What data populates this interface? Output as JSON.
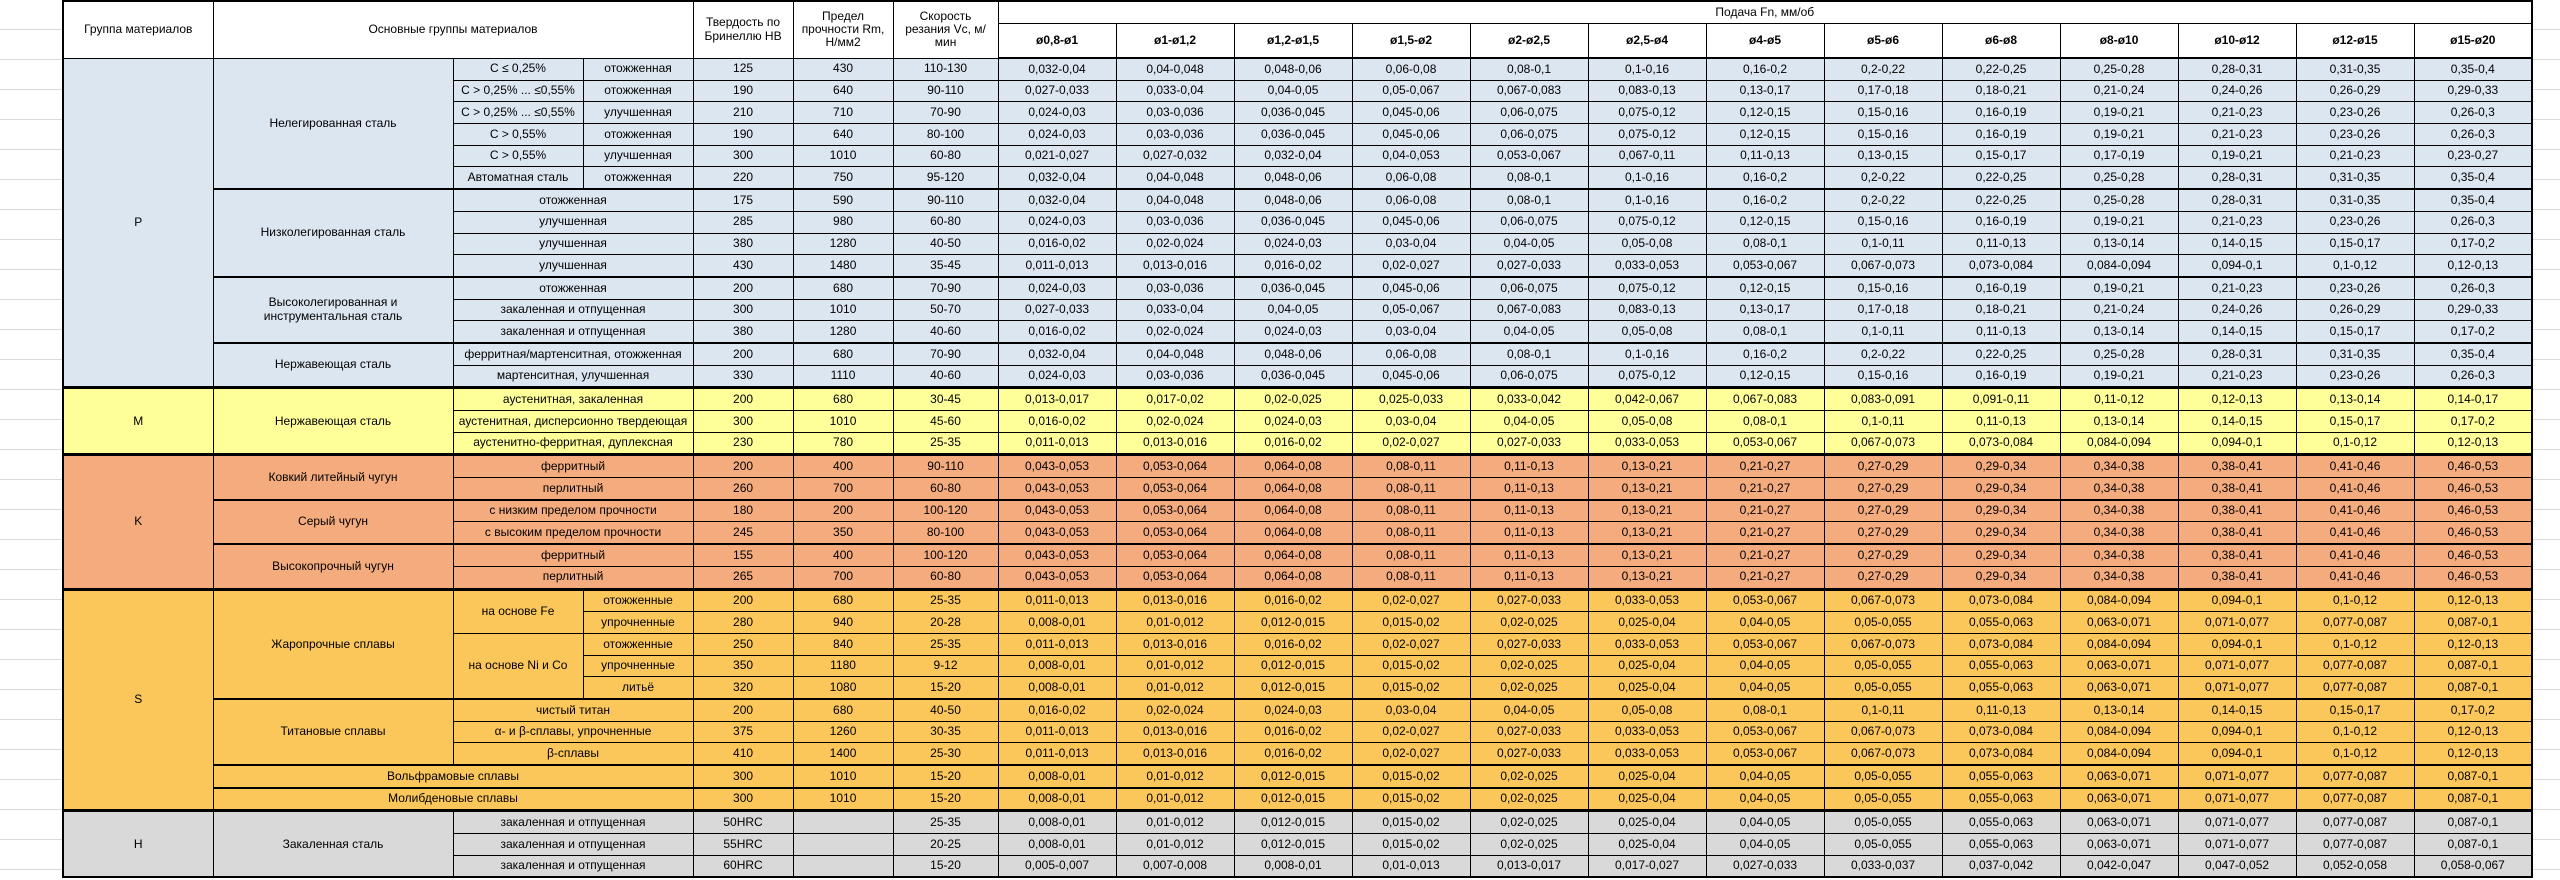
{
  "colors": {
    "P": "#DCE6F1",
    "M": "#FFFF99",
    "K": "#F4AC7E",
    "S": "#FBC75B",
    "H": "#D9D9D9"
  },
  "table": {
    "header": {
      "col_group": "Группа материалов",
      "col_main": "Основные группы материалов",
      "col_hb": "Твердость по Бринеллю HB",
      "col_rm": "Предел прочности Rm, Н/мм2",
      "col_vc": "Скорость резания Vc, м/мин",
      "col_feed": "Подача Fn, мм/об",
      "diameters": [
        "ø0,8-ø1",
        "ø1-ø1,2",
        "ø1,2-ø1,5",
        "ø1,5-ø2",
        "ø2-ø2,5",
        "ø2,5-ø4",
        "ø4-ø5",
        "ø5-ø6",
        "ø6-ø8",
        "ø8-ø10",
        "ø10-ø12",
        "ø12-ø15",
        "ø15-ø20"
      ],
      "diameter_unit_prefix": "ø"
    },
    "feed_patterns": {
      "A": [
        "0,032-0,04",
        "0,04-0,048",
        "0,048-0,06",
        "0,06-0,08",
        "0,08-0,1",
        "0,1-0,16",
        "0,16-0,2",
        "0,2-0,22",
        "0,22-0,25",
        "0,25-0,28",
        "0,28-0,31",
        "0,31-0,35",
        "0,35-0,4"
      ],
      "B": [
        "0,027-0,033",
        "0,033-0,04",
        "0,04-0,05",
        "0,05-0,067",
        "0,067-0,083",
        "0,083-0,13",
        "0,13-0,17",
        "0,17-0,18",
        "0,18-0,21",
        "0,21-0,24",
        "0,24-0,26",
        "0,26-0,29",
        "0,29-0,33"
      ],
      "C": [
        "0,024-0,03",
        "0,03-0,036",
        "0,036-0,045",
        "0,045-0,06",
        "0,06-0,075",
        "0,075-0,12",
        "0,12-0,15",
        "0,15-0,16",
        "0,16-0,19",
        "0,19-0,21",
        "0,21-0,23",
        "0,23-0,26",
        "0,26-0,3"
      ],
      "D": [
        "0,021-0,027",
        "0,027-0,032",
        "0,032-0,04",
        "0,04-0,053",
        "0,053-0,067",
        "0,067-0,11",
        "0,11-0,13",
        "0,13-0,15",
        "0,15-0,17",
        "0,17-0,19",
        "0,19-0,21",
        "0,21-0,23",
        "0,23-0,27"
      ],
      "E": [
        "0,016-0,02",
        "0,02-0,024",
        "0,024-0,03",
        "0,03-0,04",
        "0,04-0,05",
        "0,05-0,08",
        "0,08-0,1",
        "0,1-0,11",
        "0,11-0,13",
        "0,13-0,14",
        "0,14-0,15",
        "0,15-0,17",
        "0,17-0,2"
      ],
      "F": [
        "0,011-0,013",
        "0,013-0,016",
        "0,016-0,02",
        "0,02-0,027",
        "0,027-0,033",
        "0,033-0,053",
        "0,053-0,067",
        "0,067-0,073",
        "0,073-0,084",
        "0,084-0,094",
        "0,094-0,1",
        "0,1-0,12",
        "0,12-0,13"
      ],
      "G": [
        "0,013-0,017",
        "0,017-0,02",
        "0,02-0,025",
        "0,025-0,033",
        "0,033-0,042",
        "0,042-0,067",
        "0,067-0,083",
        "0,083-0,091",
        "0,091-0,11",
        "0,11-0,12",
        "0,12-0,13",
        "0,13-0,14",
        "0,14-0,17"
      ],
      "KP": [
        "0,043-0,053",
        "0,053-0,064",
        "0,064-0,08",
        "0,08-0,11",
        "0,11-0,13",
        "0,13-0,21",
        "0,21-0,27",
        "0,27-0,29",
        "0,29-0,34",
        "0,34-0,38",
        "0,38-0,41",
        "0,41-0,46",
        "0,46-0,53"
      ],
      "H8": [
        "0,008-0,01",
        "0,01-0,012",
        "0,012-0,015",
        "0,015-0,02",
        "0,02-0,025",
        "0,025-0,04",
        "0,04-0,05",
        "0,05-0,055",
        "0,055-0,063",
        "0,063-0,071",
        "0,071-0,077",
        "0,077-0,087",
        "0,087-0,1"
      ],
      "I": [
        "0,005-0,007",
        "0,007-0,008",
        "0,008-0,01",
        "0,01-0,013",
        "0,013-0,017",
        "0,017-0,027",
        "0,027-0,033",
        "0,033-0,037",
        "0,037-0,042",
        "0,042-0,047",
        "0,047-0,052",
        "0,052-0,058",
        "0,058-0,067"
      ]
    },
    "rows": [
      {
        "c": "gP",
        "b": 0,
        "t": [
          [
            "P",
            15
          ],
          [
            "Нелегированная сталь",
            6,
            1,
            "wrap"
          ],
          [
            "C ≤ 0,25%"
          ],
          [
            "отожженная"
          ],
          [
            "125"
          ],
          [
            "430"
          ],
          [
            "110-130"
          ]
        ],
        "f": "A"
      },
      {
        "c": "gP",
        "b": 0,
        "t": [
          [
            "C > 0,25% ... ≤0,55%"
          ],
          [
            "отожженная"
          ],
          [
            "190"
          ],
          [
            "640"
          ],
          [
            "90-110"
          ]
        ],
        "f": "B"
      },
      {
        "c": "gP",
        "b": 0,
        "t": [
          [
            "C > 0,25% ... ≤0,55%"
          ],
          [
            "улучшенная"
          ],
          [
            "210"
          ],
          [
            "710"
          ],
          [
            "70-90"
          ]
        ],
        "f": "C"
      },
      {
        "c": "gP",
        "b": 0,
        "t": [
          [
            "C > 0,55%"
          ],
          [
            "отожженная"
          ],
          [
            "190"
          ],
          [
            "640"
          ],
          [
            "80-100"
          ]
        ],
        "f": "C"
      },
      {
        "c": "gP",
        "b": 0,
        "t": [
          [
            "C > 0,55%"
          ],
          [
            "улучшенная"
          ],
          [
            "300"
          ],
          [
            "1010"
          ],
          [
            "60-80"
          ]
        ],
        "f": "D"
      },
      {
        "c": "gP",
        "b": 0,
        "t": [
          [
            "Автоматная сталь"
          ],
          [
            "отожженная"
          ],
          [
            "220"
          ],
          [
            "750"
          ],
          [
            "95-120"
          ]
        ],
        "f": "A"
      },
      {
        "c": "gP",
        "b": 2,
        "t": [
          [
            "Низколегированная сталь",
            4,
            1,
            "wrap"
          ],
          [
            "отожженная",
            1,
            2
          ],
          [
            "175"
          ],
          [
            "590"
          ],
          [
            "90-110"
          ]
        ],
        "f": "A"
      },
      {
        "c": "gP",
        "b": 0,
        "t": [
          [
            "улучшенная",
            1,
            2
          ],
          [
            "285"
          ],
          [
            "980"
          ],
          [
            "60-80"
          ]
        ],
        "f": "C"
      },
      {
        "c": "gP",
        "b": 0,
        "t": [
          [
            "улучшенная",
            1,
            2
          ],
          [
            "380"
          ],
          [
            "1280"
          ],
          [
            "40-50"
          ]
        ],
        "f": "E"
      },
      {
        "c": "gP",
        "b": 0,
        "t": [
          [
            "улучшенная",
            1,
            2
          ],
          [
            "430"
          ],
          [
            "1480"
          ],
          [
            "35-45"
          ]
        ],
        "f": "F"
      },
      {
        "c": "gP",
        "b": 2,
        "t": [
          [
            "Высоколегированная и инструментальная сталь",
            3,
            1,
            "wrap"
          ],
          [
            "отожженная",
            1,
            2
          ],
          [
            "200"
          ],
          [
            "680"
          ],
          [
            "70-90"
          ]
        ],
        "f": "C"
      },
      {
        "c": "gP",
        "b": 0,
        "t": [
          [
            "закаленная и отпущенная",
            1,
            2
          ],
          [
            "300"
          ],
          [
            "1010"
          ],
          [
            "50-70"
          ]
        ],
        "f": "B"
      },
      {
        "c": "gP",
        "b": 0,
        "t": [
          [
            "закаленная и отпущенная",
            1,
            2
          ],
          [
            "380"
          ],
          [
            "1280"
          ],
          [
            "40-60"
          ]
        ],
        "f": "E"
      },
      {
        "c": "gP",
        "b": 2,
        "t": [
          [
            "Нержавеющая сталь",
            2,
            1,
            "wrap"
          ],
          [
            "ферритная/мартенситная, отожженная",
            1,
            2
          ],
          [
            "200"
          ],
          [
            "680"
          ],
          [
            "70-90"
          ]
        ],
        "f": "A"
      },
      {
        "c": "gP",
        "b": 0,
        "t": [
          [
            "мартенситная, улучшенная",
            1,
            2
          ],
          [
            "330"
          ],
          [
            "1110"
          ],
          [
            "40-60"
          ]
        ],
        "f": "C"
      },
      {
        "c": "gM",
        "b": 3,
        "t": [
          [
            "M",
            3
          ],
          [
            "Нержавеющая сталь",
            3,
            1,
            "wrap"
          ],
          [
            "аустенитная, закаленная",
            1,
            2
          ],
          [
            "200"
          ],
          [
            "680"
          ],
          [
            "30-45"
          ]
        ],
        "f": "G"
      },
      {
        "c": "gM",
        "b": 0,
        "t": [
          [
            "аустенитная, дисперсионно твердеющая",
            1,
            2
          ],
          [
            "300"
          ],
          [
            "1010"
          ],
          [
            "45-60"
          ]
        ],
        "f": "E"
      },
      {
        "c": "gM",
        "b": 0,
        "t": [
          [
            "аустенитно-ферритная, дуплексная",
            1,
            2
          ],
          [
            "230"
          ],
          [
            "780"
          ],
          [
            "25-35"
          ]
        ],
        "f": "F"
      },
      {
        "c": "gK",
        "b": 3,
        "t": [
          [
            "K",
            6
          ],
          [
            "Ковкий литейный чугун",
            2,
            1,
            "wrap"
          ],
          [
            "ферритный",
            1,
            2
          ],
          [
            "200"
          ],
          [
            "400"
          ],
          [
            "90-110"
          ]
        ],
        "f": "KP"
      },
      {
        "c": "gK",
        "b": 0,
        "t": [
          [
            "перлитный",
            1,
            2
          ],
          [
            "260"
          ],
          [
            "700"
          ],
          [
            "60-80"
          ]
        ],
        "f": "KP"
      },
      {
        "c": "gK",
        "b": 2,
        "t": [
          [
            "Серый чугун",
            2,
            1,
            "wrap"
          ],
          [
            "с низким пределом прочности",
            1,
            2
          ],
          [
            "180"
          ],
          [
            "200"
          ],
          [
            "100-120"
          ]
        ],
        "f": "KP"
      },
      {
        "c": "gK",
        "b": 0,
        "t": [
          [
            "с высоким пределом прочности",
            1,
            2
          ],
          [
            "245"
          ],
          [
            "350"
          ],
          [
            "80-100"
          ]
        ],
        "f": "KP"
      },
      {
        "c": "gK",
        "b": 2,
        "t": [
          [
            "Высокопрочный чугун",
            2,
            1,
            "wrap"
          ],
          [
            "ферритный",
            1,
            2
          ],
          [
            "155"
          ],
          [
            "400"
          ],
          [
            "100-120"
          ]
        ],
        "f": "KP"
      },
      {
        "c": "gK",
        "b": 0,
        "t": [
          [
            "перлитный",
            1,
            2
          ],
          [
            "265"
          ],
          [
            "700"
          ],
          [
            "60-80"
          ]
        ],
        "f": "KP"
      },
      {
        "c": "gS",
        "b": 3,
        "t": [
          [
            "S",
            10
          ],
          [
            "Жаропрочные сплавы",
            5,
            1,
            "wrap"
          ],
          [
            "на основе Fe",
            2,
            1,
            "wrap"
          ],
          [
            "отожженные"
          ],
          [
            "200"
          ],
          [
            "680"
          ],
          [
            "25-35"
          ]
        ],
        "f": "F"
      },
      {
        "c": "gS",
        "b": 0,
        "t": [
          [
            "упрочненные"
          ],
          [
            "280"
          ],
          [
            "940"
          ],
          [
            "20-28"
          ]
        ],
        "f": "H8"
      },
      {
        "c": "gS",
        "b": 0,
        "t": [
          [
            "на основе Ni и Co",
            3,
            1,
            "wrap"
          ],
          [
            "отожженные"
          ],
          [
            "250"
          ],
          [
            "840"
          ],
          [
            "25-35"
          ]
        ],
        "f": "F"
      },
      {
        "c": "gS",
        "b": 0,
        "t": [
          [
            "упрочненные"
          ],
          [
            "350"
          ],
          [
            "1180"
          ],
          [
            "9-12"
          ]
        ],
        "f": "H8"
      },
      {
        "c": "gS",
        "b": 0,
        "t": [
          [
            "литьё"
          ],
          [
            "320"
          ],
          [
            "1080"
          ],
          [
            "15-20"
          ]
        ],
        "f": "H8"
      },
      {
        "c": "gS",
        "b": 2,
        "t": [
          [
            "Титановые сплавы",
            3,
            1,
            "wrap"
          ],
          [
            "чистый титан",
            1,
            2
          ],
          [
            "200"
          ],
          [
            "680"
          ],
          [
            "40-50"
          ]
        ],
        "f": "E"
      },
      {
        "c": "gS",
        "b": 0,
        "t": [
          [
            "α- и β-сплавы, упрочненные",
            1,
            2
          ],
          [
            "375"
          ],
          [
            "1260"
          ],
          [
            "30-35"
          ]
        ],
        "f": "F"
      },
      {
        "c": "gS",
        "b": 0,
        "t": [
          [
            "β-сплавы",
            1,
            2
          ],
          [
            "410"
          ],
          [
            "1400"
          ],
          [
            "25-30"
          ]
        ],
        "f": "F"
      },
      {
        "c": "gS",
        "b": 2,
        "t": [
          [
            "Вольфрамовые сплавы",
            1,
            3
          ],
          [
            "300"
          ],
          [
            "1010"
          ],
          [
            "15-20"
          ]
        ],
        "f": "H8"
      },
      {
        "c": "gS",
        "b": 2,
        "t": [
          [
            "Молибденовые сплавы",
            1,
            3
          ],
          [
            "300"
          ],
          [
            "1010"
          ],
          [
            "15-20"
          ]
        ],
        "f": "H8"
      },
      {
        "c": "gH",
        "b": 3,
        "t": [
          [
            "H",
            3
          ],
          [
            "Закаленная сталь",
            3,
            1,
            "wrap"
          ],
          [
            "закаленная и отпущенная",
            1,
            2
          ],
          [
            "50HRC"
          ],
          [
            ""
          ],
          [
            "25-35"
          ]
        ],
        "f": "H8"
      },
      {
        "c": "gH",
        "b": 0,
        "t": [
          [
            "закаленная и отпущенная",
            1,
            2
          ],
          [
            "55HRC"
          ],
          [
            ""
          ],
          [
            "20-25"
          ]
        ],
        "f": "H8"
      },
      {
        "c": "gH",
        "b": 0,
        "t": [
          [
            "закаленная и отпущенная",
            1,
            2
          ],
          [
            "60HRC"
          ],
          [
            ""
          ],
          [
            "15-20"
          ]
        ],
        "f": "I"
      }
    ]
  }
}
